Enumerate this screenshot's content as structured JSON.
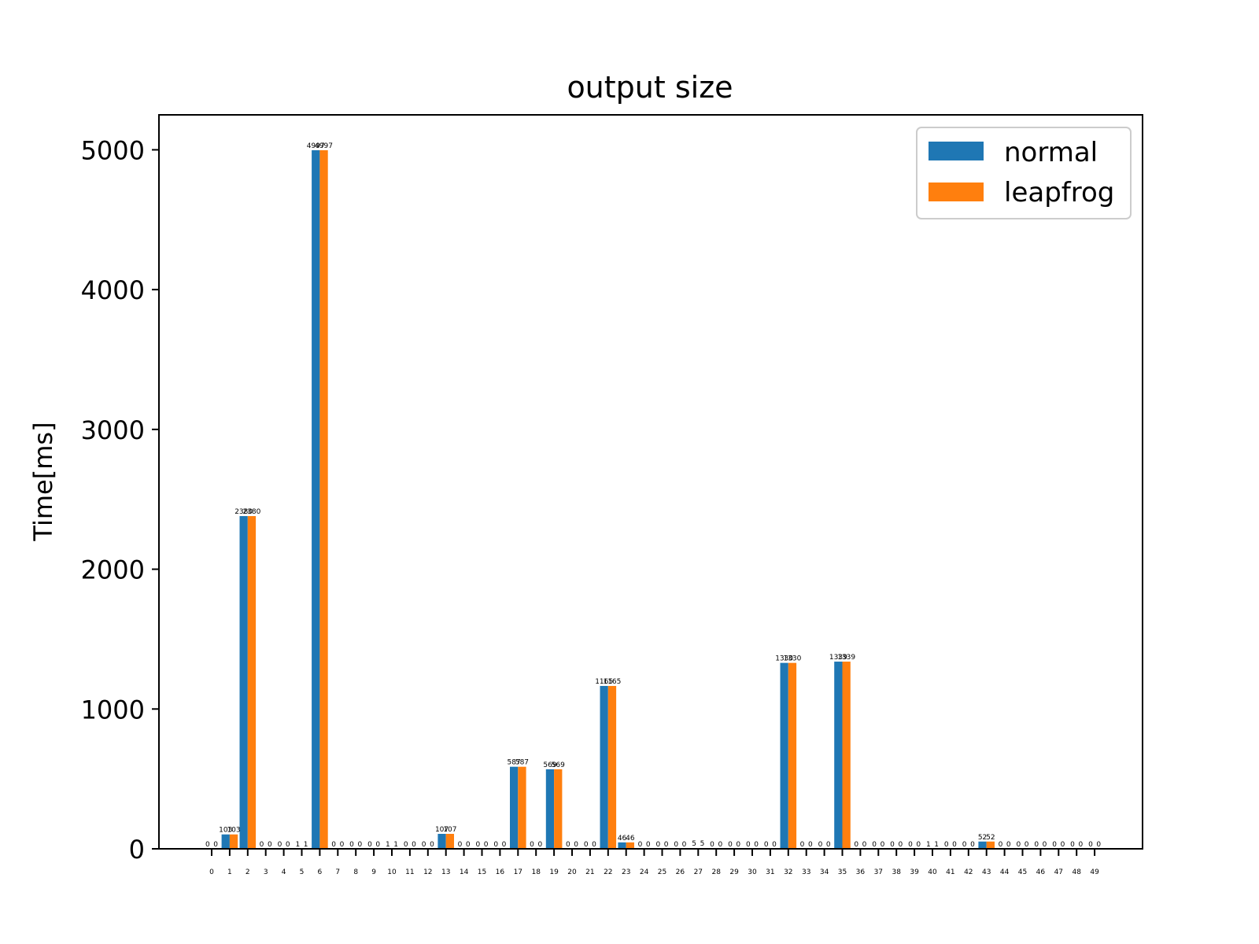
{
  "chart_data": {
    "type": "bar",
    "title": "output size",
    "xlabel": "",
    "ylabel": "Time[ms]",
    "ylim": [
      0,
      5250
    ],
    "yticks": [
      0,
      1000,
      2000,
      3000,
      4000,
      5000
    ],
    "categories": [
      "0",
      "1",
      "2",
      "3",
      "4",
      "5",
      "6",
      "7",
      "8",
      "9",
      "10",
      "11",
      "12",
      "13",
      "14",
      "15",
      "16",
      "17",
      "18",
      "19",
      "20",
      "21",
      "22",
      "23",
      "24",
      "25",
      "26",
      "27",
      "28",
      "29",
      "30",
      "31",
      "32",
      "33",
      "34",
      "35",
      "36",
      "37",
      "38",
      "39",
      "40",
      "41",
      "42",
      "43",
      "44",
      "45",
      "46",
      "47",
      "48",
      "49"
    ],
    "series": [
      {
        "name": "normal",
        "color": "#1f77b4",
        "values": [
          0,
          103,
          2380,
          0,
          0,
          1,
          4997,
          0,
          0,
          0,
          1,
          0,
          0,
          107,
          0,
          0,
          0,
          587,
          0,
          569,
          0,
          0,
          1165,
          46,
          0,
          0,
          0,
          5,
          0,
          0,
          0,
          0,
          1330,
          0,
          0,
          1339,
          0,
          0,
          0,
          0,
          1,
          0,
          0,
          52,
          0,
          0,
          0,
          0,
          0,
          0
        ]
      },
      {
        "name": "leapfrog",
        "color": "#ff7f0e",
        "values": [
          0,
          103,
          2380,
          0,
          0,
          1,
          4997,
          0,
          0,
          0,
          1,
          0,
          0,
          107,
          0,
          0,
          0,
          587,
          0,
          569,
          0,
          0,
          1165,
          46,
          0,
          0,
          0,
          5,
          0,
          0,
          0,
          0,
          1330,
          0,
          0,
          1339,
          0,
          0,
          0,
          0,
          1,
          0,
          0,
          52,
          0,
          0,
          0,
          0,
          0,
          0
        ]
      }
    ],
    "legend_position": "upper right",
    "grid": false
  }
}
